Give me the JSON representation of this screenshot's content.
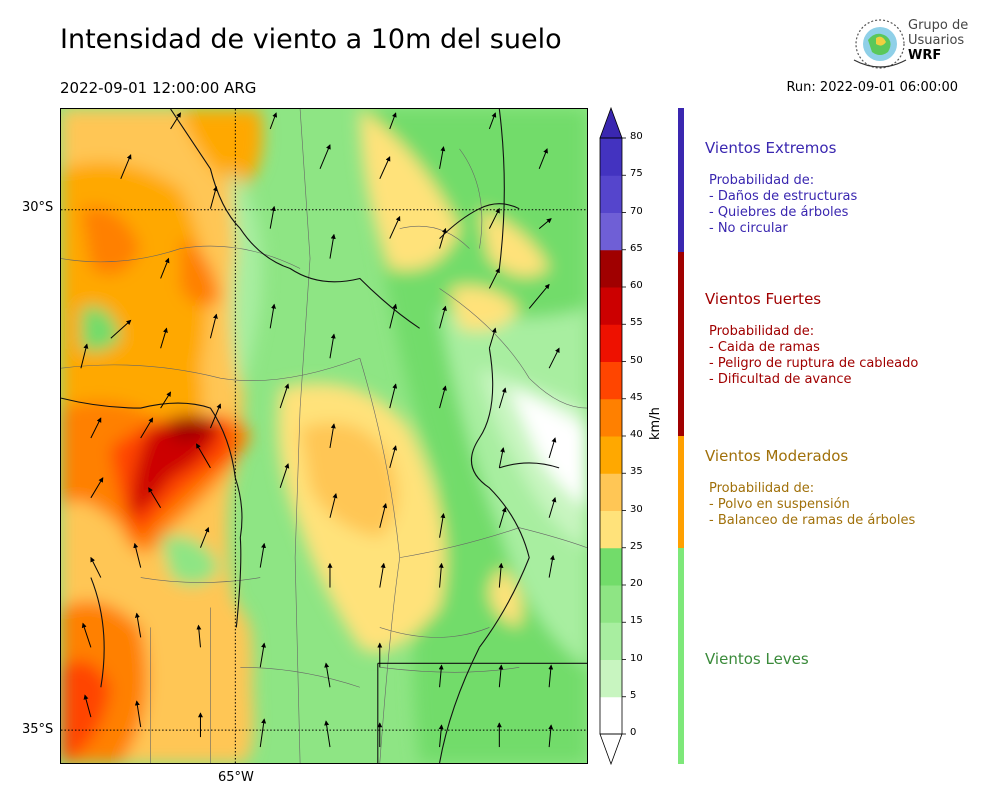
{
  "title": "Intensidad de viento a 10m del suelo",
  "valid_time": "2022-09-01 12:00:00 ARG",
  "run_time": "Run: 2022-09-01 06:00:00",
  "logo": {
    "line1": "Grupo de",
    "line2": "Usuarios",
    "line3": "WRF"
  },
  "map": {
    "lat_labels": [
      "30°S",
      "35°S"
    ],
    "lon_labels": [
      "65°W"
    ]
  },
  "colorbar": {
    "unit": "km/h",
    "ticks": [
      "0",
      "5",
      "10",
      "15",
      "20",
      "25",
      "30",
      "35",
      "40",
      "45",
      "50",
      "55",
      "60",
      "65",
      "70",
      "75",
      "80"
    ],
    "colors": [
      "#ffffff",
      "#c8f5c0",
      "#a8eea0",
      "#8ee584",
      "#72dc6a",
      "#ffe27a",
      "#ffc655",
      "#ffa800",
      "#ff8000",
      "#ff4500",
      "#ee1100",
      "#cc0000",
      "#a00000",
      "#6f5fd6",
      "#5545cc",
      "#4333c0",
      "#3a27b0"
    ]
  },
  "categories": [
    {
      "title": "Vientos Extremos",
      "color": "#3a27b0",
      "desc": [
        "Probabilidad de:",
        "- Daños de estructuras",
        "- Quiebres de árboles",
        "- No circular"
      ]
    },
    {
      "title": "Vientos Fuertes",
      "color": "#a00000",
      "desc": [
        "Probabilidad de:",
        "- Caida de ramas",
        "- Peligro de ruptura de cableado",
        "- Dificultad de avance"
      ]
    },
    {
      "title": "Vientos Moderados",
      "color": "#a0700a",
      "desc": [
        "Probabilidad de:",
        "- Polvo en suspensión",
        "- Balanceo de ramas de árboles"
      ]
    },
    {
      "title": "Vientos Leves",
      "color": "#3a8a3a",
      "desc": []
    }
  ],
  "category_bar_colors": [
    "#3a27b0",
    "#a00000",
    "#ffa000",
    "#7ee87a"
  ]
}
